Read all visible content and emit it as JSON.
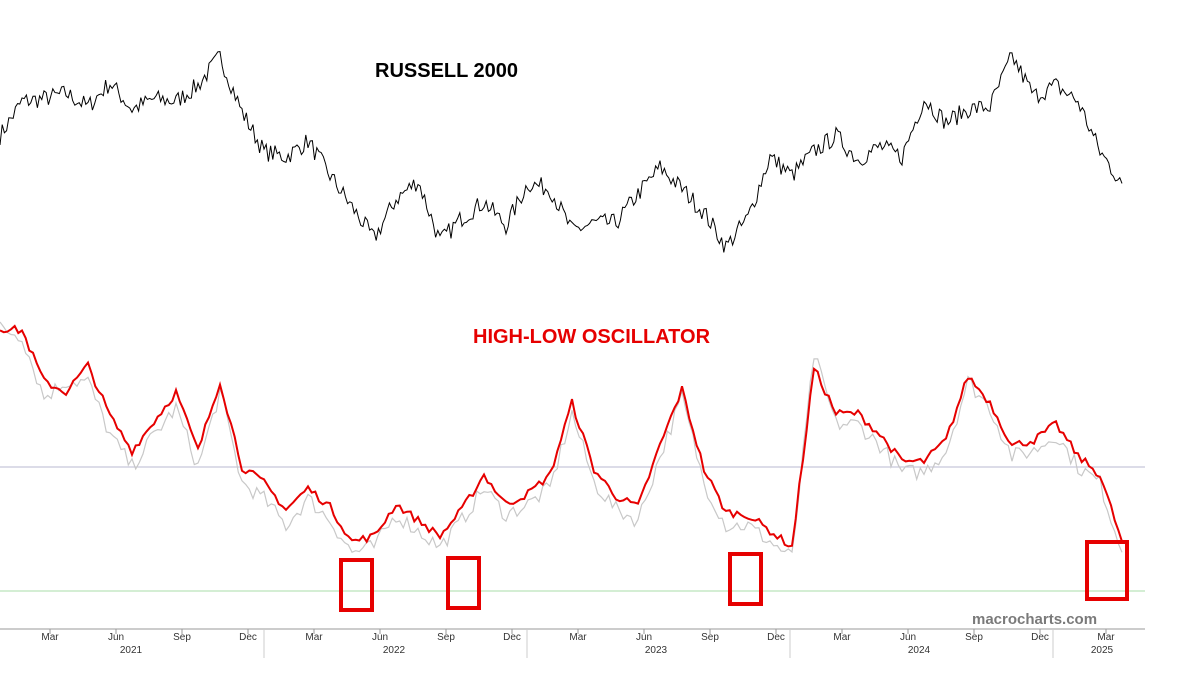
{
  "chart_data": [
    {
      "type": "line",
      "title": "RUSSELL 2000",
      "color": "#000000",
      "x": [
        "2021-01",
        "2021-02",
        "2021-03",
        "2021-04",
        "2021-05",
        "2021-06",
        "2021-07",
        "2021-08",
        "2021-09",
        "2021-10",
        "2021-11",
        "2021-12",
        "2022-01",
        "2022-02",
        "2022-03",
        "2022-04",
        "2022-05",
        "2022-06",
        "2022-07",
        "2022-08",
        "2022-09",
        "2022-10",
        "2022-11",
        "2022-12",
        "2023-01",
        "2023-02",
        "2023-03",
        "2023-04",
        "2023-05",
        "2023-06",
        "2023-07",
        "2023-08",
        "2023-09",
        "2023-10",
        "2023-11",
        "2023-12",
        "2024-01",
        "2024-02",
        "2024-03",
        "2024-04",
        "2024-05",
        "2024-06",
        "2024-07",
        "2024-08",
        "2024-09",
        "2024-10",
        "2024-11",
        "2024-12",
        "2025-01",
        "2025-02",
        "2025-03",
        "2025-04"
      ],
      "values": [
        2100,
        2230,
        2240,
        2260,
        2210,
        2300,
        2200,
        2240,
        2230,
        2290,
        2400,
        2190,
        2040,
        2020,
        2080,
        1950,
        1830,
        1710,
        1860,
        1930,
        1700,
        1790,
        1850,
        1760,
        1920,
        1900,
        1740,
        1770,
        1770,
        1880,
        1980,
        1900,
        1810,
        1680,
        1790,
        2020,
        1950,
        2040,
        2100,
        2010,
        2060,
        2020,
        2240,
        2150,
        2200,
        2210,
        2400,
        2250,
        2290,
        2230,
        2040,
        1920
      ],
      "ylim": [
        1600,
        2500
      ]
    },
    {
      "type": "line",
      "title": "HIGH-LOW OSCILLATOR",
      "color": "#e60000",
      "series": [
        {
          "color": "#e60000",
          "values": [
            100,
            99,
            80,
            76,
            86,
            67,
            54,
            65,
            76,
            54,
            80,
            48,
            42,
            32,
            40,
            33,
            20,
            22,
            34,
            28,
            22,
            32,
            45,
            34,
            38,
            45,
            72,
            47,
            37,
            33,
            56,
            77,
            47,
            31,
            30,
            24,
            18,
            85,
            68,
            68,
            60,
            50,
            50,
            58,
            82,
            72,
            56,
            58,
            64,
            52,
            45,
            20
          ]
        },
        {
          "color": "#c8c8c8",
          "values": [
            100,
            97,
            74,
            80,
            80,
            60,
            48,
            60,
            70,
            48,
            76,
            42,
            36,
            26,
            36,
            28,
            16,
            18,
            30,
            24,
            18,
            28,
            40,
            30,
            34,
            40,
            68,
            42,
            32,
            28,
            52,
            74,
            42,
            26,
            26,
            20,
            14,
            90,
            64,
            64,
            56,
            46,
            46,
            54,
            80,
            70,
            52,
            54,
            60,
            48,
            42,
            16
          ]
        }
      ],
      "reference_lines": [
        {
          "color": "#b8b8d0"
        },
        {
          "color": "#a8dca8"
        }
      ],
      "highlight_color": "#e60000",
      "highlight_count": 4
    }
  ],
  "x_axis": {
    "months": [
      "Mar",
      "Jun",
      "Sep",
      "Dec",
      "Mar",
      "Jun",
      "Sep",
      "Dec",
      "Mar",
      "Jun",
      "Sep",
      "Dec",
      "Mar",
      "Jun",
      "Sep",
      "Dec",
      "Mar"
    ],
    "years": [
      "2021",
      "2022",
      "2023",
      "2024",
      "2025"
    ]
  },
  "watermark": "macrocharts.com"
}
